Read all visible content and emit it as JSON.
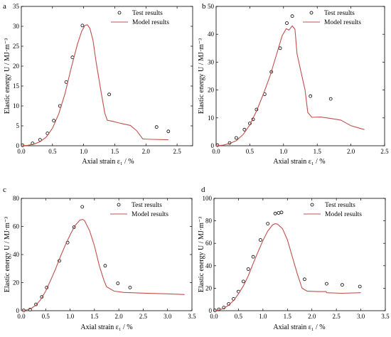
{
  "colors": {
    "model_line": "#c0504d",
    "test_marker": "#000000",
    "axes": "#000000"
  },
  "chart_data": [
    {
      "type": "scatter",
      "panel": "a",
      "xlabel": "Axial strain ε₁ / %",
      "ylabel": "Elastic energy U / MJ·m⁻³",
      "xlim": [
        0,
        2.75
      ],
      "ylim": [
        0,
        35
      ],
      "xticks": [
        "0.0",
        "0.5",
        "1.0",
        "1.5",
        "2.0",
        "2.5"
      ],
      "yticks": [
        "0",
        "5",
        "10",
        "15",
        "20",
        "25",
        "30",
        "35"
      ],
      "legend_position": "top-right",
      "grid": false,
      "series": [
        {
          "name": "Test results",
          "kind": "markers",
          "x": [
            0.02,
            0.18,
            0.3,
            0.42,
            0.52,
            0.62,
            0.72,
            0.82,
            0.98,
            1.41,
            2.17,
            2.36
          ],
          "y": [
            0.1,
            0.6,
            1.5,
            3.1,
            6.3,
            10.0,
            16.0,
            22.2,
            30.2,
            12.9,
            4.7,
            3.6
          ]
        },
        {
          "name": "Model results",
          "kind": "line",
          "x": [
            0.0,
            0.1,
            0.2,
            0.3,
            0.4,
            0.5,
            0.6,
            0.7,
            0.8,
            0.9,
            0.97,
            1.02,
            1.06,
            1.1,
            1.15,
            1.2,
            1.28,
            1.34,
            1.38,
            1.45,
            1.6,
            1.75,
            1.85,
            1.95,
            2.1,
            2.36
          ],
          "y": [
            0.0,
            0.1,
            0.4,
            1.0,
            2.2,
            4.4,
            8.0,
            13.0,
            19.5,
            25.5,
            28.8,
            30.2,
            30.4,
            29.5,
            26.5,
            21.0,
            13.5,
            8.2,
            6.4,
            6.2,
            5.6,
            5.1,
            3.8,
            1.7,
            1.6,
            1.5
          ]
        }
      ]
    },
    {
      "type": "scatter",
      "panel": "b",
      "xlabel": "Axial strain ε₁ / %",
      "ylabel": "Elastic energy U / MJ·m⁻³",
      "xlim": [
        0,
        2.5
      ],
      "ylim": [
        0,
        50
      ],
      "xticks": [
        "0.0",
        "0.5",
        "1.0",
        "1.5",
        "2.0",
        "2.5"
      ],
      "yticks": [
        "0",
        "10",
        "20",
        "30",
        "40",
        "50"
      ],
      "legend_position": "top-right",
      "grid": false,
      "series": [
        {
          "name": "Test results",
          "kind": "markers",
          "x": [
            0.02,
            0.2,
            0.3,
            0.42,
            0.5,
            0.55,
            0.6,
            0.72,
            0.82,
            0.95,
            1.05,
            1.13,
            1.4,
            1.7
          ],
          "y": [
            0.2,
            1.0,
            2.8,
            5.8,
            8.0,
            9.5,
            13.0,
            18.5,
            26.5,
            35.0,
            44.0,
            46.5,
            17.8,
            16.8
          ]
        },
        {
          "name": "Model results",
          "kind": "line",
          "x": [
            0.0,
            0.1,
            0.2,
            0.3,
            0.4,
            0.5,
            0.6,
            0.7,
            0.8,
            0.9,
            0.98,
            1.04,
            1.08,
            1.13,
            1.17,
            1.2,
            1.26,
            1.32,
            1.36,
            1.42,
            1.55,
            1.7,
            1.85,
            2.0,
            2.2
          ],
          "y": [
            0.0,
            0.2,
            0.8,
            1.8,
            4.0,
            7.5,
            12.5,
            18.5,
            25.0,
            33.0,
            39.5,
            42.0,
            41.5,
            43.0,
            41.8,
            33.0,
            26.5,
            20.0,
            12.0,
            10.2,
            10.3,
            9.8,
            9.2,
            7.2,
            5.8
          ]
        }
      ]
    },
    {
      "type": "scatter",
      "panel": "c",
      "xlabel": "Axial strain ε₁ / %",
      "ylabel": "Elastic energy U / MJ·m⁻³",
      "xlim": [
        0,
        3.5
      ],
      "ylim": [
        0,
        80
      ],
      "xticks": [
        "0.0",
        "0.5",
        "1.0",
        "1.5",
        "2.0",
        "2.5",
        "3.0",
        "3.5"
      ],
      "yticks": [
        "0",
        "20",
        "40",
        "60",
        "80"
      ],
      "legend_position": "top-right",
      "grid": false,
      "series": [
        {
          "name": "Test results",
          "kind": "markers",
          "x": [
            0.05,
            0.18,
            0.3,
            0.42,
            0.52,
            0.78,
            0.95,
            1.08,
            1.25,
            1.72,
            1.98,
            2.23
          ],
          "y": [
            0.2,
            0.8,
            4.5,
            9.8,
            16.5,
            35.5,
            48.5,
            59.5,
            74.0,
            32.0,
            19.5,
            16.5
          ]
        },
        {
          "name": "Model results",
          "kind": "line",
          "x": [
            0.0,
            0.1,
            0.2,
            0.3,
            0.4,
            0.5,
            0.6,
            0.7,
            0.8,
            0.9,
            1.0,
            1.1,
            1.2,
            1.26,
            1.3,
            1.4,
            1.5,
            1.6,
            1.7,
            1.75,
            1.9,
            2.1,
            2.5,
            3.0,
            3.35
          ],
          "y": [
            0.0,
            0.5,
            1.5,
            4.0,
            8.0,
            14.0,
            21.5,
            29.5,
            38.5,
            46.5,
            54.0,
            60.5,
            64.5,
            65.0,
            64.0,
            57.0,
            46.0,
            32.0,
            21.0,
            17.0,
            14.0,
            13.0,
            12.5,
            12.0,
            11.5
          ]
        }
      ]
    },
    {
      "type": "scatter",
      "panel": "d",
      "xlabel": "Axial strain ε₁ / %",
      "ylabel": "Elastic energy U / MJ·m⁻³",
      "xlim": [
        0,
        3.5
      ],
      "ylim": [
        0,
        100
      ],
      "xticks": [
        "0.0",
        "0.5",
        "1.0",
        "1.5",
        "2.0",
        "2.5",
        "3.0",
        "3.5"
      ],
      "yticks": [
        "0",
        "20",
        "40",
        "60",
        "80",
        "100"
      ],
      "legend_position": "top-right",
      "grid": false,
      "series": [
        {
          "name": "Test results",
          "kind": "markers",
          "x": [
            0.02,
            0.1,
            0.2,
            0.3,
            0.4,
            0.5,
            0.6,
            0.7,
            0.8,
            0.95,
            1.1,
            1.25,
            1.32,
            1.38,
            1.85,
            2.3,
            2.62,
            2.98
          ],
          "y": [
            0.2,
            1.2,
            2.8,
            6.0,
            10.5,
            17.0,
            26.0,
            37.0,
            48.0,
            63.0,
            77.5,
            86.5,
            87.0,
            87.5,
            28.0,
            24.0,
            23.0,
            21.5
          ]
        },
        {
          "name": "Model results",
          "kind": "line",
          "x": [
            0.0,
            0.1,
            0.2,
            0.3,
            0.4,
            0.5,
            0.6,
            0.7,
            0.8,
            0.9,
            1.0,
            1.1,
            1.2,
            1.25,
            1.3,
            1.4,
            1.5,
            1.6,
            1.7,
            1.8,
            1.9,
            2.1,
            2.29,
            2.3,
            2.6,
            3.0
          ],
          "y": [
            0.0,
            0.6,
            2.0,
            5.0,
            9.0,
            15.0,
            22.0,
            31.0,
            42.0,
            52.5,
            62.5,
            71.0,
            76.5,
            77.5,
            77.0,
            73.0,
            63.0,
            48.0,
            33.0,
            20.0,
            17.5,
            17.0,
            17.0,
            16.0,
            15.5,
            16.0
          ]
        }
      ]
    }
  ]
}
